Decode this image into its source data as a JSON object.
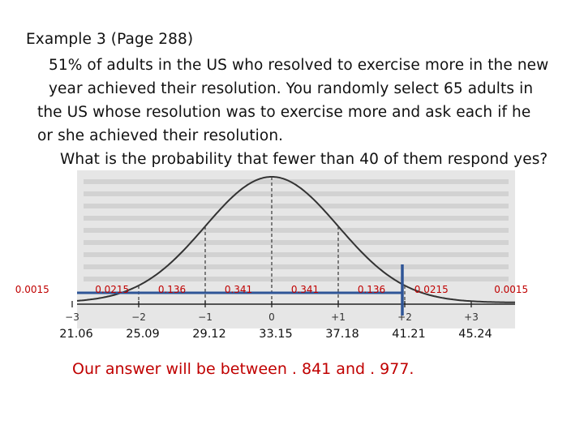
{
  "text_lines": [
    "Example 3 (Page 288)",
    "51% of adults in the US who resolved to exercise more in the new",
    "year achieved their resolution. You randomly select 65 adults in",
    "the US whose resolution was to exercise more and ask each if he",
    "or she achieved their resolution.",
    "What is the probability that fewer than 40 of them respond yes?"
  ],
  "figure": {
    "axis_ticks": [
      "−3",
      "−2",
      "−1",
      "0",
      "+1",
      "+2",
      "+3"
    ],
    "region_probabilities": [
      "0.0015",
      "0.0215",
      "0.136",
      "0.341",
      "0.341",
      "0.136",
      "0.0215",
      "0.0015"
    ],
    "x_values": [
      "21.06",
      "25.09",
      "29.12",
      "33.15",
      "37.18",
      "41.21",
      "45.24"
    ],
    "colors": {
      "probability_labels": "#c00000",
      "bracket": "#2f5597",
      "curve": "#333333"
    }
  },
  "answer": "Our answer will be between . 841 and . 977."
}
